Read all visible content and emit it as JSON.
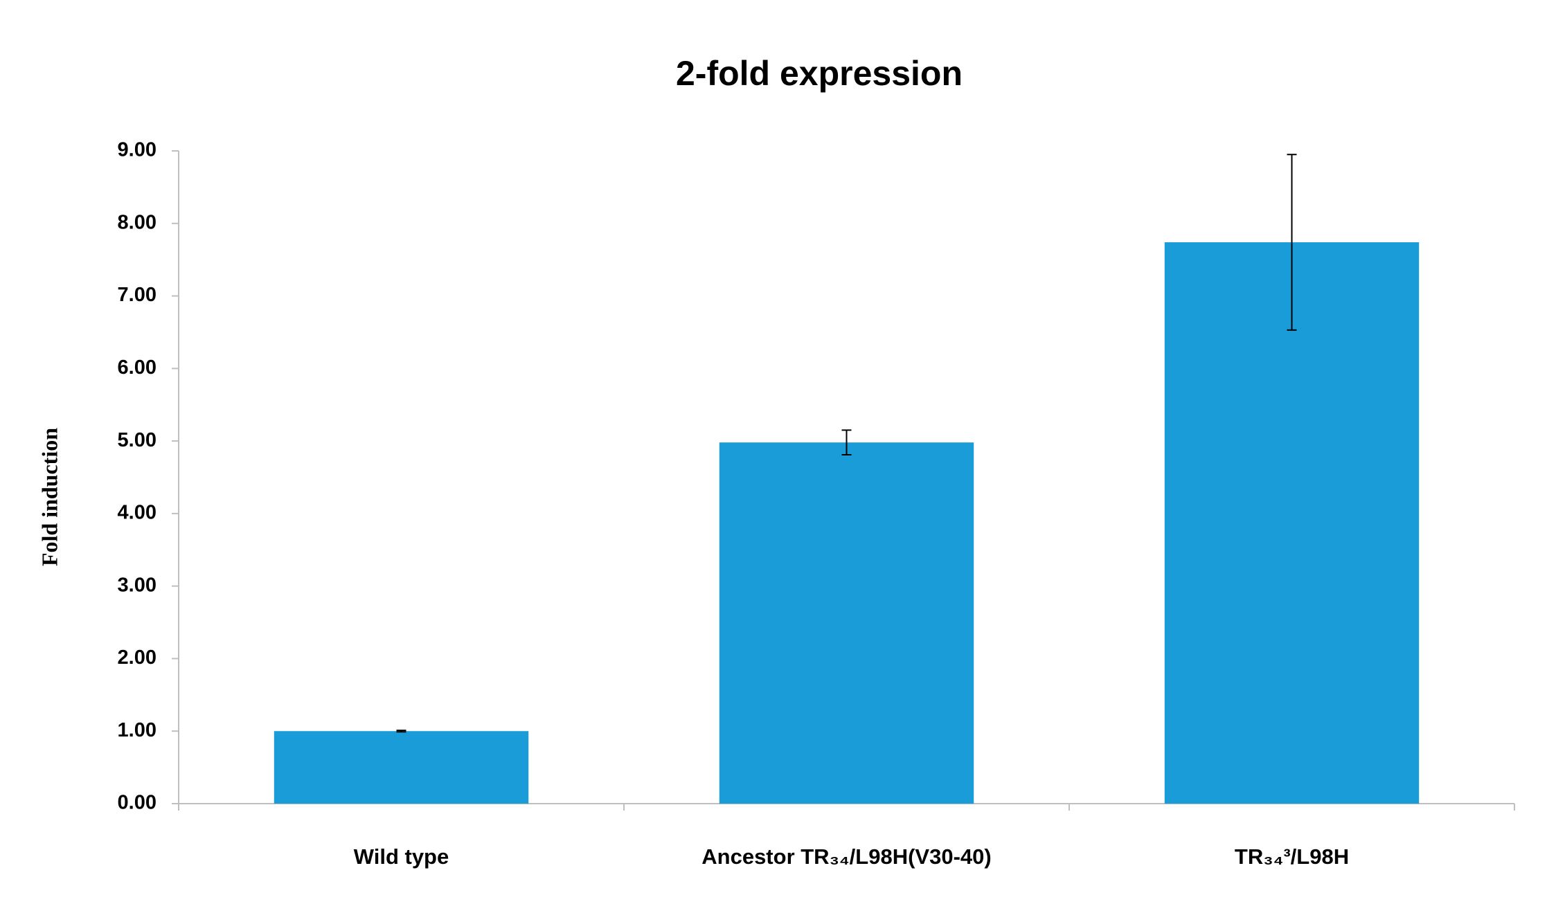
{
  "chart_data": {
    "type": "bar",
    "title": "2-fold expression",
    "y_label": "Fold induction",
    "categories": [
      "Wild type",
      "Ancestor TR₃₄/L98H(V30-40)",
      "TR₃₄³/L98H"
    ],
    "values": [
      1.0,
      4.98,
      7.74
    ],
    "errors": [
      0.01,
      0.17,
      1.21
    ],
    "color": "#1a9cd8",
    "ylim": [
      0,
      9
    ],
    "yticks": [
      {
        "value": 0,
        "label": "0.00"
      },
      {
        "value": 1,
        "label": "1.00"
      },
      {
        "value": 2,
        "label": "2.00"
      },
      {
        "value": 3,
        "label": "3.00"
      },
      {
        "value": 4,
        "label": "4.00"
      },
      {
        "value": 5,
        "label": "5.00"
      },
      {
        "value": 6,
        "label": "6.00"
      },
      {
        "value": 7,
        "label": "7.00"
      },
      {
        "value": 8,
        "label": "8.00"
      },
      {
        "value": 9,
        "label": "9.00"
      }
    ],
    "grid": false
  }
}
